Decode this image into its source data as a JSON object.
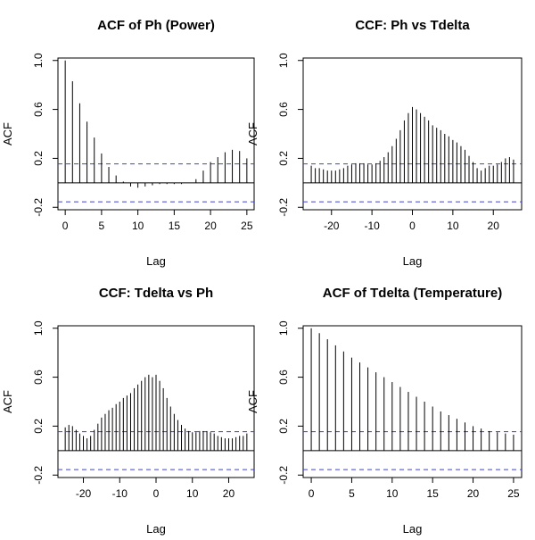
{
  "figure": {
    "background": "#ffffff",
    "colors": {
      "bars": "#000000",
      "confidence_line": "#4040d8",
      "zero_line": "#000000"
    }
  },
  "chart_data": [
    {
      "type": "bar",
      "title": "ACF of Ph (Power)",
      "xlabel": "Lag",
      "ylabel": "ACF",
      "xlim": [
        0,
        25
      ],
      "ylim": [
        -0.22,
        1.02
      ],
      "xticks": [
        "0",
        "5",
        "10",
        "15",
        "20",
        "25"
      ],
      "yticks": [
        "-0.2",
        "0.2",
        "0.6",
        "1.0"
      ],
      "conf_bound": 0.155,
      "x": [
        0,
        1,
        2,
        3,
        4,
        5,
        6,
        7,
        8,
        9,
        10,
        11,
        12,
        13,
        14,
        15,
        16,
        17,
        18,
        19,
        20,
        21,
        22,
        23,
        24,
        25
      ],
      "values": [
        1.0,
        0.83,
        0.65,
        0.5,
        0.37,
        0.24,
        0.13,
        0.06,
        0.01,
        -0.03,
        -0.04,
        -0.03,
        -0.02,
        -0.01,
        -0.01,
        -0.01,
        -0.01,
        -0.0,
        0.03,
        0.1,
        0.17,
        0.21,
        0.25,
        0.27,
        0.26,
        0.2
      ],
      "grid": false
    },
    {
      "type": "bar",
      "title": "CCF: Ph vs Tdelta",
      "xlabel": "Lag",
      "ylabel": "ACF",
      "xlim": [
        -25,
        25
      ],
      "ylim": [
        -0.22,
        1.02
      ],
      "xticks": [
        "-20",
        "-10",
        "0",
        "10",
        "20"
      ],
      "yticks": [
        "-0.2",
        "0.2",
        "0.6",
        "1.0"
      ],
      "conf_bound": 0.155,
      "x": [
        -25,
        -24,
        -23,
        -22,
        -21,
        -20,
        -19,
        -18,
        -17,
        -16,
        -15,
        -14,
        -13,
        -12,
        -11,
        -10,
        -9,
        -8,
        -7,
        -6,
        -5,
        -4,
        -3,
        -2,
        -1,
        0,
        1,
        2,
        3,
        4,
        5,
        6,
        7,
        8,
        9,
        10,
        11,
        12,
        13,
        14,
        15,
        16,
        17,
        18,
        19,
        20,
        21,
        22,
        23,
        24,
        25
      ],
      "values": [
        0.14,
        0.12,
        0.12,
        0.11,
        0.1,
        0.1,
        0.1,
        0.11,
        0.12,
        0.14,
        0.15,
        0.16,
        0.16,
        0.16,
        0.15,
        0.15,
        0.16,
        0.18,
        0.21,
        0.25,
        0.3,
        0.36,
        0.43,
        0.51,
        0.57,
        0.62,
        0.6,
        0.57,
        0.54,
        0.51,
        0.47,
        0.45,
        0.43,
        0.4,
        0.38,
        0.35,
        0.33,
        0.3,
        0.27,
        0.22,
        0.17,
        0.12,
        0.1,
        0.12,
        0.14,
        0.14,
        0.15,
        0.17,
        0.2,
        0.21,
        0.19
      ],
      "grid": false
    },
    {
      "type": "bar",
      "title": "CCF: Tdelta vs Ph",
      "xlabel": "Lag",
      "ylabel": "ACF",
      "xlim": [
        -25,
        25
      ],
      "ylim": [
        -0.22,
        1.02
      ],
      "xticks": [
        "-20",
        "-10",
        "0",
        "10",
        "20"
      ],
      "yticks": [
        "-0.2",
        "0.2",
        "0.6",
        "1.0"
      ],
      "conf_bound": 0.155,
      "x": [
        -25,
        -24,
        -23,
        -22,
        -21,
        -20,
        -19,
        -18,
        -17,
        -16,
        -15,
        -14,
        -13,
        -12,
        -11,
        -10,
        -9,
        -8,
        -7,
        -6,
        -5,
        -4,
        -3,
        -2,
        -1,
        0,
        1,
        2,
        3,
        4,
        5,
        6,
        7,
        8,
        9,
        10,
        11,
        12,
        13,
        14,
        15,
        16,
        17,
        18,
        19,
        20,
        21,
        22,
        23,
        24,
        25
      ],
      "values": [
        0.19,
        0.21,
        0.2,
        0.17,
        0.14,
        0.12,
        0.1,
        0.12,
        0.17,
        0.22,
        0.27,
        0.3,
        0.33,
        0.35,
        0.38,
        0.4,
        0.43,
        0.45,
        0.47,
        0.51,
        0.54,
        0.57,
        0.6,
        0.62,
        0.6,
        0.62,
        0.57,
        0.51,
        0.43,
        0.36,
        0.3,
        0.25,
        0.21,
        0.18,
        0.16,
        0.15,
        0.15,
        0.16,
        0.16,
        0.16,
        0.15,
        0.14,
        0.12,
        0.11,
        0.1,
        0.1,
        0.1,
        0.11,
        0.12,
        0.12,
        0.14
      ],
      "grid": false
    },
    {
      "type": "bar",
      "title": "ACF of Tdelta (Temperature)",
      "xlabel": "Lag",
      "ylabel": "ACF",
      "xlim": [
        0,
        25
      ],
      "ylim": [
        -0.22,
        1.02
      ],
      "xticks": [
        "0",
        "5",
        "10",
        "15",
        "20",
        "25"
      ],
      "yticks": [
        "-0.2",
        "0.2",
        "0.6",
        "1.0"
      ],
      "conf_bound": 0.155,
      "x": [
        0,
        1,
        2,
        3,
        4,
        5,
        6,
        7,
        8,
        9,
        10,
        11,
        12,
        13,
        14,
        15,
        16,
        17,
        18,
        19,
        20,
        21,
        22,
        23,
        24,
        25
      ],
      "values": [
        1.0,
        0.96,
        0.91,
        0.86,
        0.81,
        0.76,
        0.72,
        0.68,
        0.64,
        0.6,
        0.56,
        0.52,
        0.48,
        0.44,
        0.4,
        0.36,
        0.32,
        0.29,
        0.26,
        0.23,
        0.2,
        0.18,
        0.16,
        0.15,
        0.14,
        0.13
      ],
      "grid": false
    }
  ]
}
